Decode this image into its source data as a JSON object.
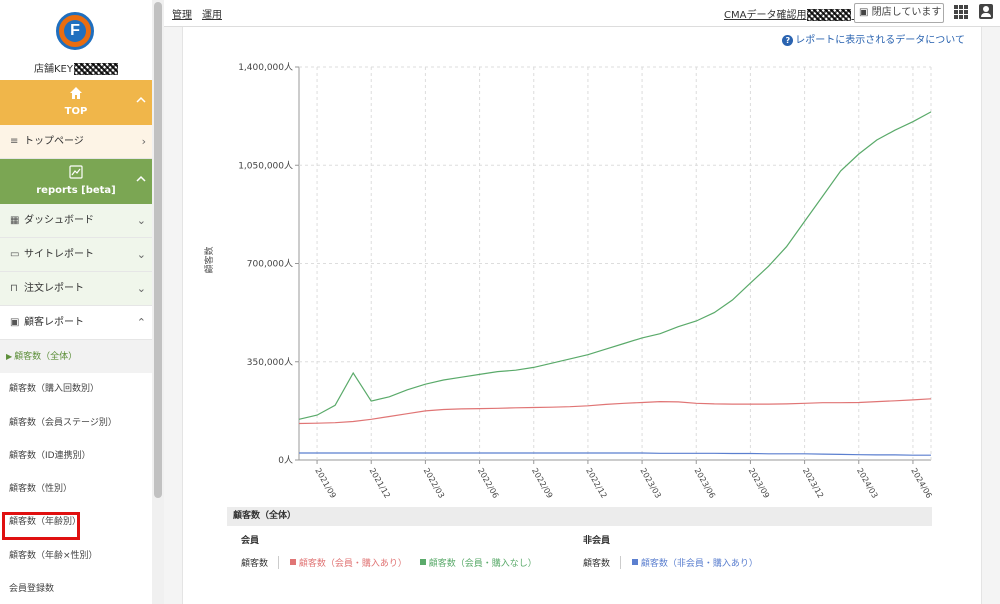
{
  "sidebar": {
    "logo_letter": "F",
    "store_key_label": "店舗KEY",
    "top_section": {
      "icon": "home-icon",
      "label": "TOP"
    },
    "top_page": {
      "icon": "list-icon",
      "label": "トップページ"
    },
    "reports_section": {
      "icon": "chart-icon",
      "label": "reports [beta]"
    },
    "menu": [
      {
        "icon": "dashboard-icon",
        "label": "ダッシュボード"
      },
      {
        "icon": "monitor-icon",
        "label": "サイトレポート"
      },
      {
        "icon": "basket-icon",
        "label": "注文レポート"
      },
      {
        "icon": "customer-icon",
        "label": "顧客レポート"
      }
    ],
    "sub_items": [
      "顧客数（全体）",
      "顧客数（購入回数別）",
      "顧客数（会員ステージ別）",
      "顧客数（ID連携別）",
      "顧客数（性別）",
      "顧客数（年齢別）",
      "顧客数（年齢×性別）",
      "会員登録数"
    ],
    "active_index": 0,
    "highlighted_index": 5
  },
  "topbar": {
    "tabs": [
      "管理",
      "運用"
    ],
    "cma_label": "CMAデータ確認用",
    "closed_label": "閉店しています"
  },
  "help_text": "レポートに表示されるデータについて",
  "colors": {
    "top_section": "#f0b64a",
    "reports_section": "#7ba653",
    "member_purchase": "#e07575",
    "member_no_purchase": "#5aaa6a",
    "nonmember_purchase": "#5b7fcf",
    "highlight_box": "#e01010"
  },
  "chart_data": {
    "type": "line",
    "ylabel": "顧客数",
    "ylim": [
      0,
      1400000
    ],
    "y_ticks": [
      "0人",
      "350,000人",
      "700,000人",
      "1,050,000人",
      "1,400,000人"
    ],
    "x_ticks": [
      "2021/09",
      "2021/12",
      "2022/03",
      "2022/06",
      "2022/09",
      "2022/12",
      "2023/03",
      "2023/06",
      "2023/09",
      "2023/12",
      "2024/03",
      "2024/06"
    ],
    "x": [
      "2021/08",
      "2021/09",
      "2021/10",
      "2021/11",
      "2021/12",
      "2022/01",
      "2022/02",
      "2022/03",
      "2022/04",
      "2022/05",
      "2022/06",
      "2022/07",
      "2022/08",
      "2022/09",
      "2022/10",
      "2022/11",
      "2022/12",
      "2023/01",
      "2023/02",
      "2023/03",
      "2023/04",
      "2023/05",
      "2023/06",
      "2023/07",
      "2023/08",
      "2023/09",
      "2023/10",
      "2023/11",
      "2023/12",
      "2024/01",
      "2024/02",
      "2024/03",
      "2024/04",
      "2024/05",
      "2024/06",
      "2024/07"
    ],
    "series": [
      {
        "name": "顧客数（会員・購入あり）",
        "color": "#e07575",
        "values": [
          130000,
          131000,
          133000,
          137000,
          145000,
          155000,
          165000,
          175000,
          180000,
          182000,
          183000,
          184000,
          186000,
          187000,
          188000,
          190000,
          193000,
          198000,
          202000,
          205000,
          208000,
          207000,
          202000,
          200000,
          199000,
          199000,
          199000,
          200000,
          202000,
          204000,
          204000,
          205000,
          208000,
          211000,
          214000,
          218000
        ]
      },
      {
        "name": "顧客数（会員・購入なし）",
        "color": "#5aaa6a",
        "values": [
          145000,
          160000,
          195000,
          310000,
          210000,
          225000,
          250000,
          270000,
          285000,
          295000,
          305000,
          315000,
          320000,
          330000,
          345000,
          360000,
          375000,
          395000,
          415000,
          435000,
          450000,
          475000,
          495000,
          525000,
          570000,
          630000,
          690000,
          760000,
          850000,
          940000,
          1030000,
          1090000,
          1140000,
          1175000,
          1205000,
          1240000
        ]
      },
      {
        "name": "顧客数（非会員・購入あり）",
        "color": "#5b7fcf",
        "values": [
          25000,
          25000,
          25000,
          25000,
          25000,
          25000,
          25000,
          25000,
          25000,
          25000,
          25000,
          25000,
          25000,
          25000,
          25000,
          25000,
          25000,
          25000,
          25000,
          25000,
          24000,
          24000,
          24000,
          24000,
          23000,
          23000,
          22000,
          22000,
          22000,
          21000,
          20000,
          19000,
          18000,
          18000,
          17000,
          17000
        ]
      }
    ]
  },
  "legend": {
    "title": "顧客数（全体）",
    "member": {
      "heading": "会員",
      "row_label": "顧客数",
      "items": [
        "顧客数（会員・購入あり）",
        "顧客数（会員・購入なし）"
      ]
    },
    "nonmember": {
      "heading": "非会員",
      "row_label": "顧客数",
      "items": [
        "顧客数（非会員・購入あり）"
      ]
    }
  }
}
